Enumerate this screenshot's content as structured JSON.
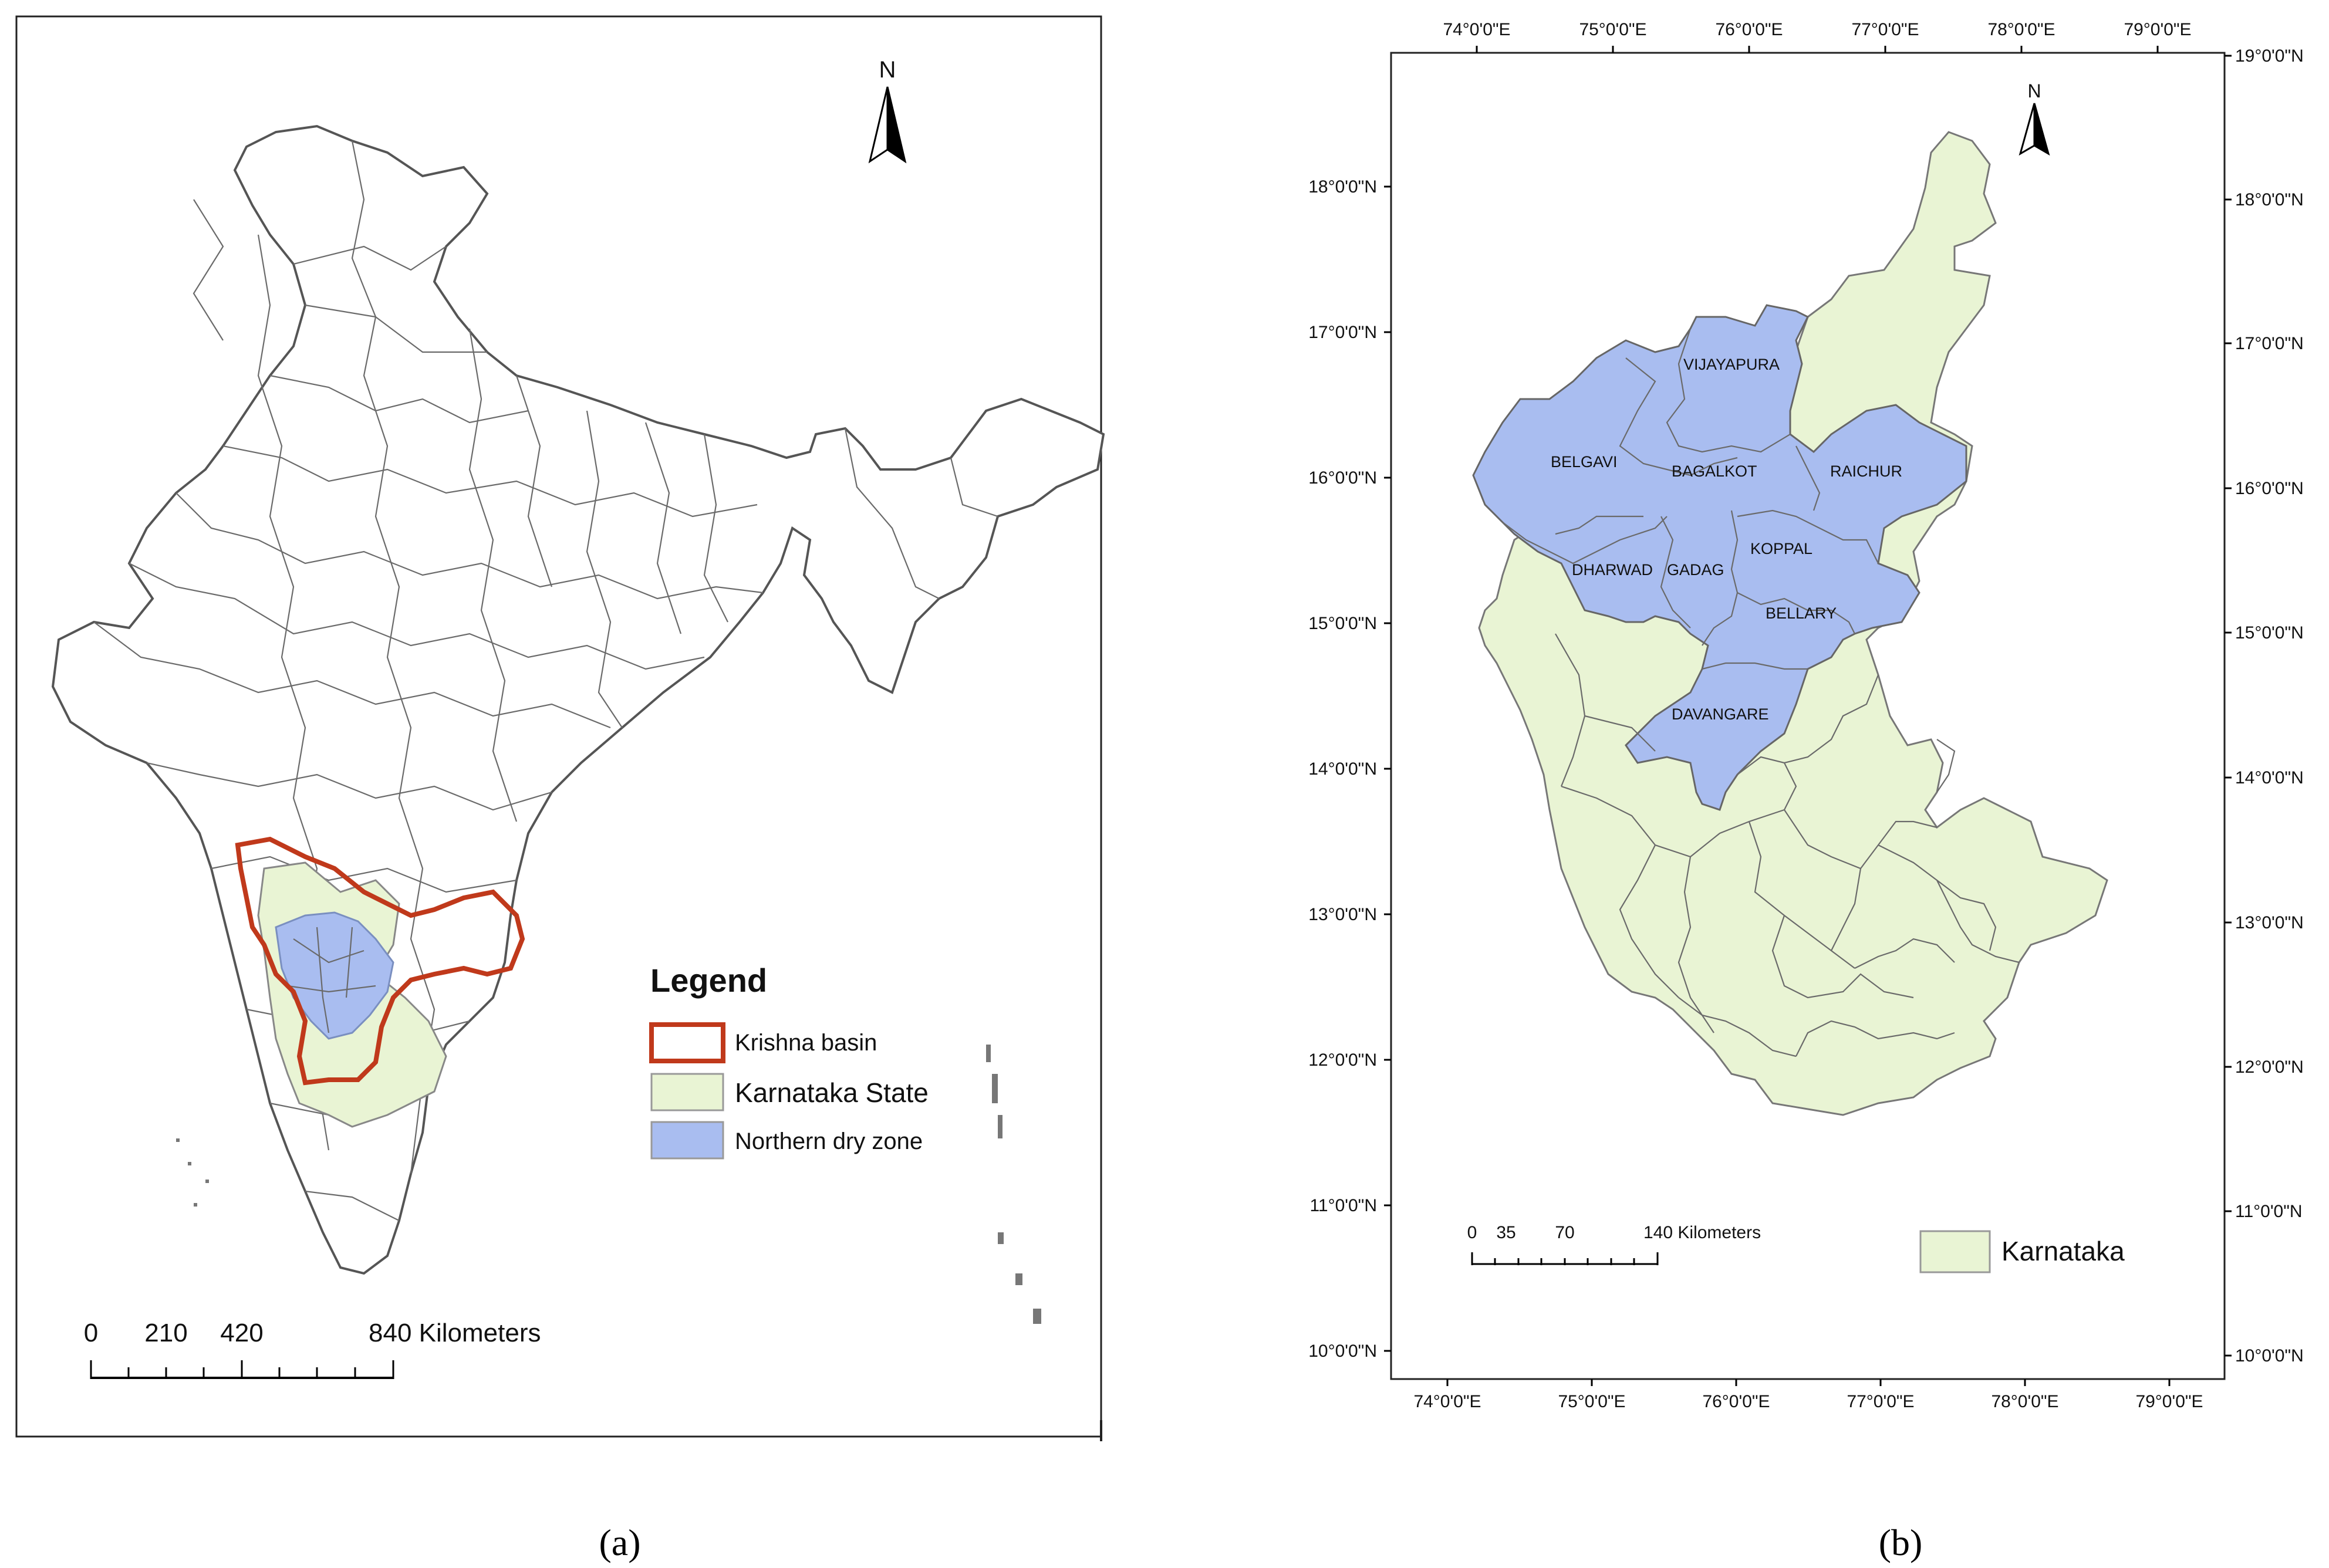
{
  "panel_a": {
    "north_label": "N",
    "legend": {
      "title": "Legend",
      "items": [
        {
          "label": "Krishna basin",
          "swatch": "#c0391b",
          "style": "outline"
        },
        {
          "label": "Karnataka State",
          "swatch": "#e9f4d4",
          "style": "fill"
        },
        {
          "label": "Northern dry zone",
          "swatch": "#a9bdf0",
          "style": "fill"
        }
      ]
    },
    "scale_bar": {
      "ticks": [
        "0",
        "210",
        "420",
        "840 Kilometers"
      ]
    },
    "caption": "(a)"
  },
  "panel_b": {
    "north_label": "N",
    "lon_labels": [
      "74°0'0\"E",
      "75°0'0\"E",
      "76°0'0\"E",
      "77°0'0\"E",
      "78°0'0\"E",
      "79°0'0\"E"
    ],
    "lat_labels_left": [
      "18°0'0\"N",
      "17°0'0\"N",
      "16°0'0\"N",
      "15°0'0\"N",
      "14°0'0\"N",
      "13°0'0\"N",
      "12°0'0\"N",
      "11°0'0\"N",
      "10°0'0\"N"
    ],
    "lat_labels_right": [
      "19°0'0\"N",
      "18°0'0\"N",
      "17°0'0\"N",
      "16°0'0\"N",
      "15°0'0\"N",
      "14°0'0\"N",
      "13°0'0\"N",
      "12°0'0\"N",
      "11°0'0\"N",
      "10°0'0\"N"
    ],
    "districts": [
      "VIJAYAPURA",
      "BELGAVI",
      "BAGALKOT",
      "RAICHUR",
      "KOPPAL",
      "DHARWAD",
      "GADAG",
      "BELLARY",
      "DAVANGARE"
    ],
    "scale_bar": {
      "ticks": [
        "0",
        "35",
        "70",
        "140 Kilometers"
      ]
    },
    "legend_label": "Karnataka",
    "caption": "(b)"
  },
  "colors": {
    "karnataka": "#e9f4d4",
    "dry_zone": "#a9bdf0",
    "basin": "#c0391b",
    "boundary": "#6a6a6a"
  }
}
